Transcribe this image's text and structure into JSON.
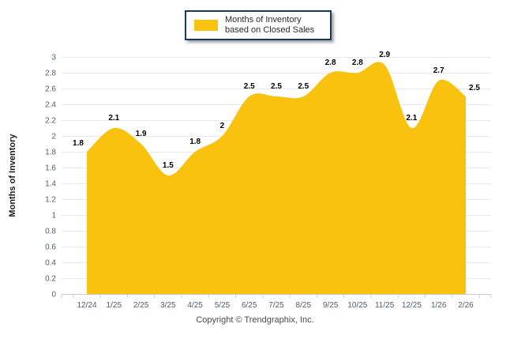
{
  "legend": {
    "label": "Months of Inventory based on Closed Sales"
  },
  "footer": {
    "copyright": "Copyright © Trendgraphix, Inc."
  },
  "colors": {
    "area_fill": "#F8C20E",
    "legend_border": "#17375E",
    "gridline": "#E9E9E9",
    "axis_line": "#CCCCCC",
    "axis_text": "#4D5D6E",
    "data_label": "#000000",
    "copyright_text": "#4B4B4B"
  },
  "chart_data": {
    "type": "area",
    "title": "",
    "series_name": "Months of Inventory based on Closed Sales",
    "categories": [
      "12/24",
      "1/25",
      "2/25",
      "3/25",
      "4/25",
      "5/25",
      "6/25",
      "7/25",
      "8/25",
      "9/25",
      "10/25",
      "11/25",
      "12/25",
      "1/26",
      "2/26"
    ],
    "values": [
      1.8,
      2.1,
      1.9,
      1.5,
      1.8,
      2,
      2.5,
      2.5,
      2.5,
      2.8,
      2.8,
      2.9,
      2.1,
      2.7,
      2.5
    ],
    "xlabel": "",
    "ylabel": "Months of Inventory",
    "ylim": [
      0,
      3
    ],
    "ytick_step": 0.2,
    "grid": true,
    "smooth": true,
    "legend_position": "top-center",
    "data_labels_shown": true
  }
}
